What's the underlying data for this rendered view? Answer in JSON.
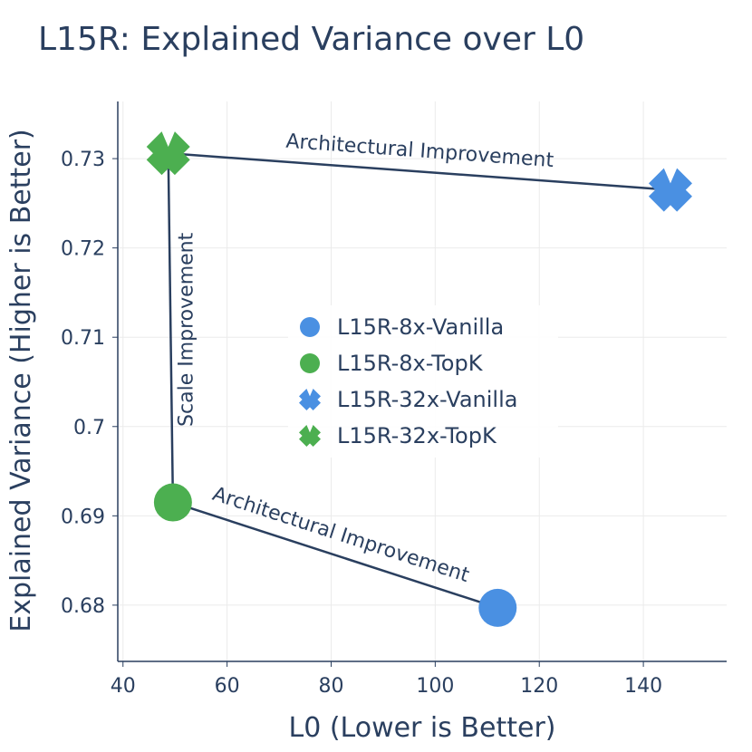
{
  "chart_data": {
    "type": "scatter",
    "title": "L15R: Explained Variance over L0",
    "xlabel": "L0 (Lower is Better)",
    "ylabel": "Explained Variance (Higher is Better)",
    "xlim": [
      39,
      156
    ],
    "ylim": [
      0.6737,
      0.7364
    ],
    "xticks": [
      40,
      60,
      80,
      100,
      120,
      140
    ],
    "xtick_labels": [
      "40",
      "60",
      "80",
      "100",
      "120",
      "140"
    ],
    "yticks": [
      0.68,
      0.69,
      0.7,
      0.71,
      0.72,
      0.73
    ],
    "ytick_labels": [
      "0.68",
      "0.69",
      "0.7",
      "0.71",
      "0.72",
      "0.73"
    ],
    "grid": true,
    "legend_position": "center",
    "series": [
      {
        "name": "L15R-8x-Vanilla",
        "marker": "circle",
        "color": "#4a90e2",
        "points": [
          {
            "x": 112,
            "y": 0.6797
          }
        ]
      },
      {
        "name": "L15R-8x-TopK",
        "marker": "circle",
        "color": "#4caf50",
        "points": [
          {
            "x": 49.6,
            "y": 0.6915
          }
        ]
      },
      {
        "name": "L15R-32x-Vanilla",
        "marker": "x",
        "color": "#4a90e2",
        "points": [
          {
            "x": 145.2,
            "y": 0.7265
          }
        ]
      },
      {
        "name": "L15R-32x-TopK",
        "marker": "x",
        "color": "#4caf50",
        "points": [
          {
            "x": 48.7,
            "y": 0.7306
          }
        ]
      }
    ],
    "annotations": [
      {
        "text": "Architectural Improvement",
        "from": {
          "x": 145.2,
          "y": 0.7265
        },
        "to": {
          "x": 48.7,
          "y": 0.7306
        }
      },
      {
        "text": "Architectural Improvement",
        "from": {
          "x": 112,
          "y": 0.6797
        },
        "to": {
          "x": 49.6,
          "y": 0.6915
        }
      },
      {
        "text": "Scale Improvement",
        "from": {
          "x": 49.6,
          "y": 0.6915
        },
        "to": {
          "x": 48.7,
          "y": 0.7306
        }
      }
    ]
  }
}
